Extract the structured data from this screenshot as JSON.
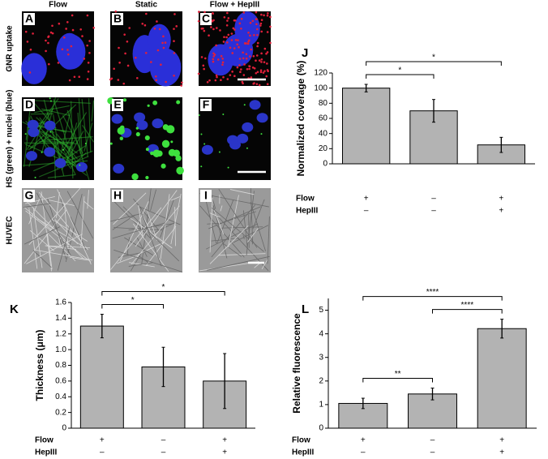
{
  "image_panels": {
    "columns": [
      "Flow",
      "Static",
      "Flow + HepIII"
    ],
    "rows": [
      "GNR uptake",
      "HS (green) + nuclei (blue)",
      "HUVEC"
    ],
    "letters": [
      "A",
      "B",
      "C",
      "D",
      "E",
      "F",
      "G",
      "H",
      "I"
    ]
  },
  "chart_data": [
    {
      "type": "bar",
      "letter": "J",
      "ylabel": "Normalized coverage (%)",
      "color": "#b3b3b3",
      "values": [
        100,
        70,
        25
      ],
      "errors": [
        5,
        15,
        10
      ],
      "ylim": [
        0,
        120
      ],
      "yticks": [
        0,
        20,
        40,
        60,
        80,
        100,
        120
      ],
      "conditions": [
        {
          "name": "Flow",
          "marks": [
            "+",
            "–",
            "+"
          ]
        },
        {
          "name": "HepIII",
          "marks": [
            "–",
            "–",
            "+"
          ]
        }
      ],
      "significance": [
        {
          "from": 0,
          "to": 1,
          "label": "*"
        },
        {
          "from": 0,
          "to": 2,
          "label": "*"
        }
      ]
    },
    {
      "type": "bar",
      "letter": "K",
      "ylabel": "Thickness (μm)",
      "color": "#b3b3b3",
      "values": [
        1.3,
        0.78,
        0.6
      ],
      "errors": [
        0.15,
        0.25,
        0.35
      ],
      "ylim": [
        0,
        1.6
      ],
      "yticks": [
        0,
        0.2,
        0.4,
        0.6,
        0.8,
        {
          "value": 1,
          "label": "1.0"
        },
        1.2,
        1.4,
        1.6
      ],
      "conditions": [
        {
          "name": "Flow",
          "marks": [
            "+",
            "–",
            "+"
          ]
        },
        {
          "name": "HepIII",
          "marks": [
            "–",
            "–",
            "+"
          ]
        }
      ],
      "significance": [
        {
          "from": 0,
          "to": 1,
          "label": "*"
        },
        {
          "from": 0,
          "to": 2,
          "label": "*"
        }
      ]
    },
    {
      "type": "bar",
      "letter": "L",
      "ylabel": "Relative fluorescence",
      "color": "#b3b3b3",
      "values": [
        1.05,
        1.45,
        4.22
      ],
      "errors": [
        0.22,
        0.25,
        0.4
      ],
      "ylim": [
        0,
        5.5
      ],
      "yticks": [
        0,
        1,
        2,
        3,
        4,
        5
      ],
      "conditions": [
        {
          "name": "Flow",
          "marks": [
            "+",
            "–",
            "+"
          ]
        },
        {
          "name": "HepIII",
          "marks": [
            "–",
            "–",
            "+"
          ]
        }
      ],
      "significance": [
        {
          "from": 0,
          "to": 1,
          "label": "**"
        },
        {
          "from": 1,
          "to": 2,
          "label": "****"
        },
        {
          "from": 0,
          "to": 2,
          "label": "****"
        }
      ]
    }
  ]
}
